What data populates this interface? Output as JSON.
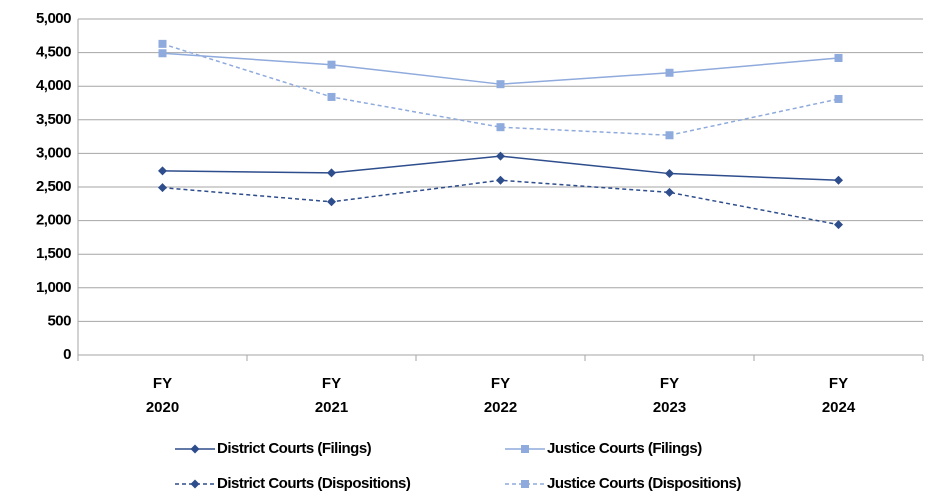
{
  "chart_data": {
    "type": "line",
    "categories": [
      "FY 2020",
      "FY 2021",
      "FY 2022",
      "FY 2023",
      "FY 2024"
    ],
    "series": [
      {
        "name": "District Courts (Filings)",
        "color": "#2e4d8c",
        "dashed": false,
        "marker": "diamond",
        "values": [
          2740,
          2710,
          2960,
          2700,
          2600
        ]
      },
      {
        "name": "Justice Courts (Filings)",
        "color": "#8faadc",
        "dashed": false,
        "marker": "square",
        "values": [
          4490,
          4320,
          4030,
          4200,
          4420
        ]
      },
      {
        "name": "District Courts (Dispositions)",
        "color": "#2e4d8c",
        "dashed": true,
        "marker": "diamond",
        "values": [
          2490,
          2280,
          2600,
          2420,
          1940
        ]
      },
      {
        "name": "Justice Courts (Dispositions)",
        "color": "#8faadc",
        "dashed": true,
        "marker": "square",
        "values": [
          4630,
          3840,
          3390,
          3270,
          3810
        ]
      }
    ],
    "ylim": [
      0,
      5000
    ],
    "yticks": [
      0,
      500,
      {
        "value": 1000,
        "label": "1,000"
      },
      {
        "value": 1500,
        "label": "1,500"
      },
      {
        "value": 2000,
        "label": "2,000"
      },
      {
        "value": 2500,
        "label": "2,500"
      },
      {
        "value": 3000,
        "label": "3,000"
      },
      {
        "value": 3500,
        "label": "3,500"
      },
      {
        "value": 4000,
        "label": "4,000"
      },
      {
        "value": 4500,
        "label": "4,500"
      },
      {
        "value": 5000,
        "label": "5,000"
      }
    ],
    "grid": true,
    "legend": "bottom"
  }
}
